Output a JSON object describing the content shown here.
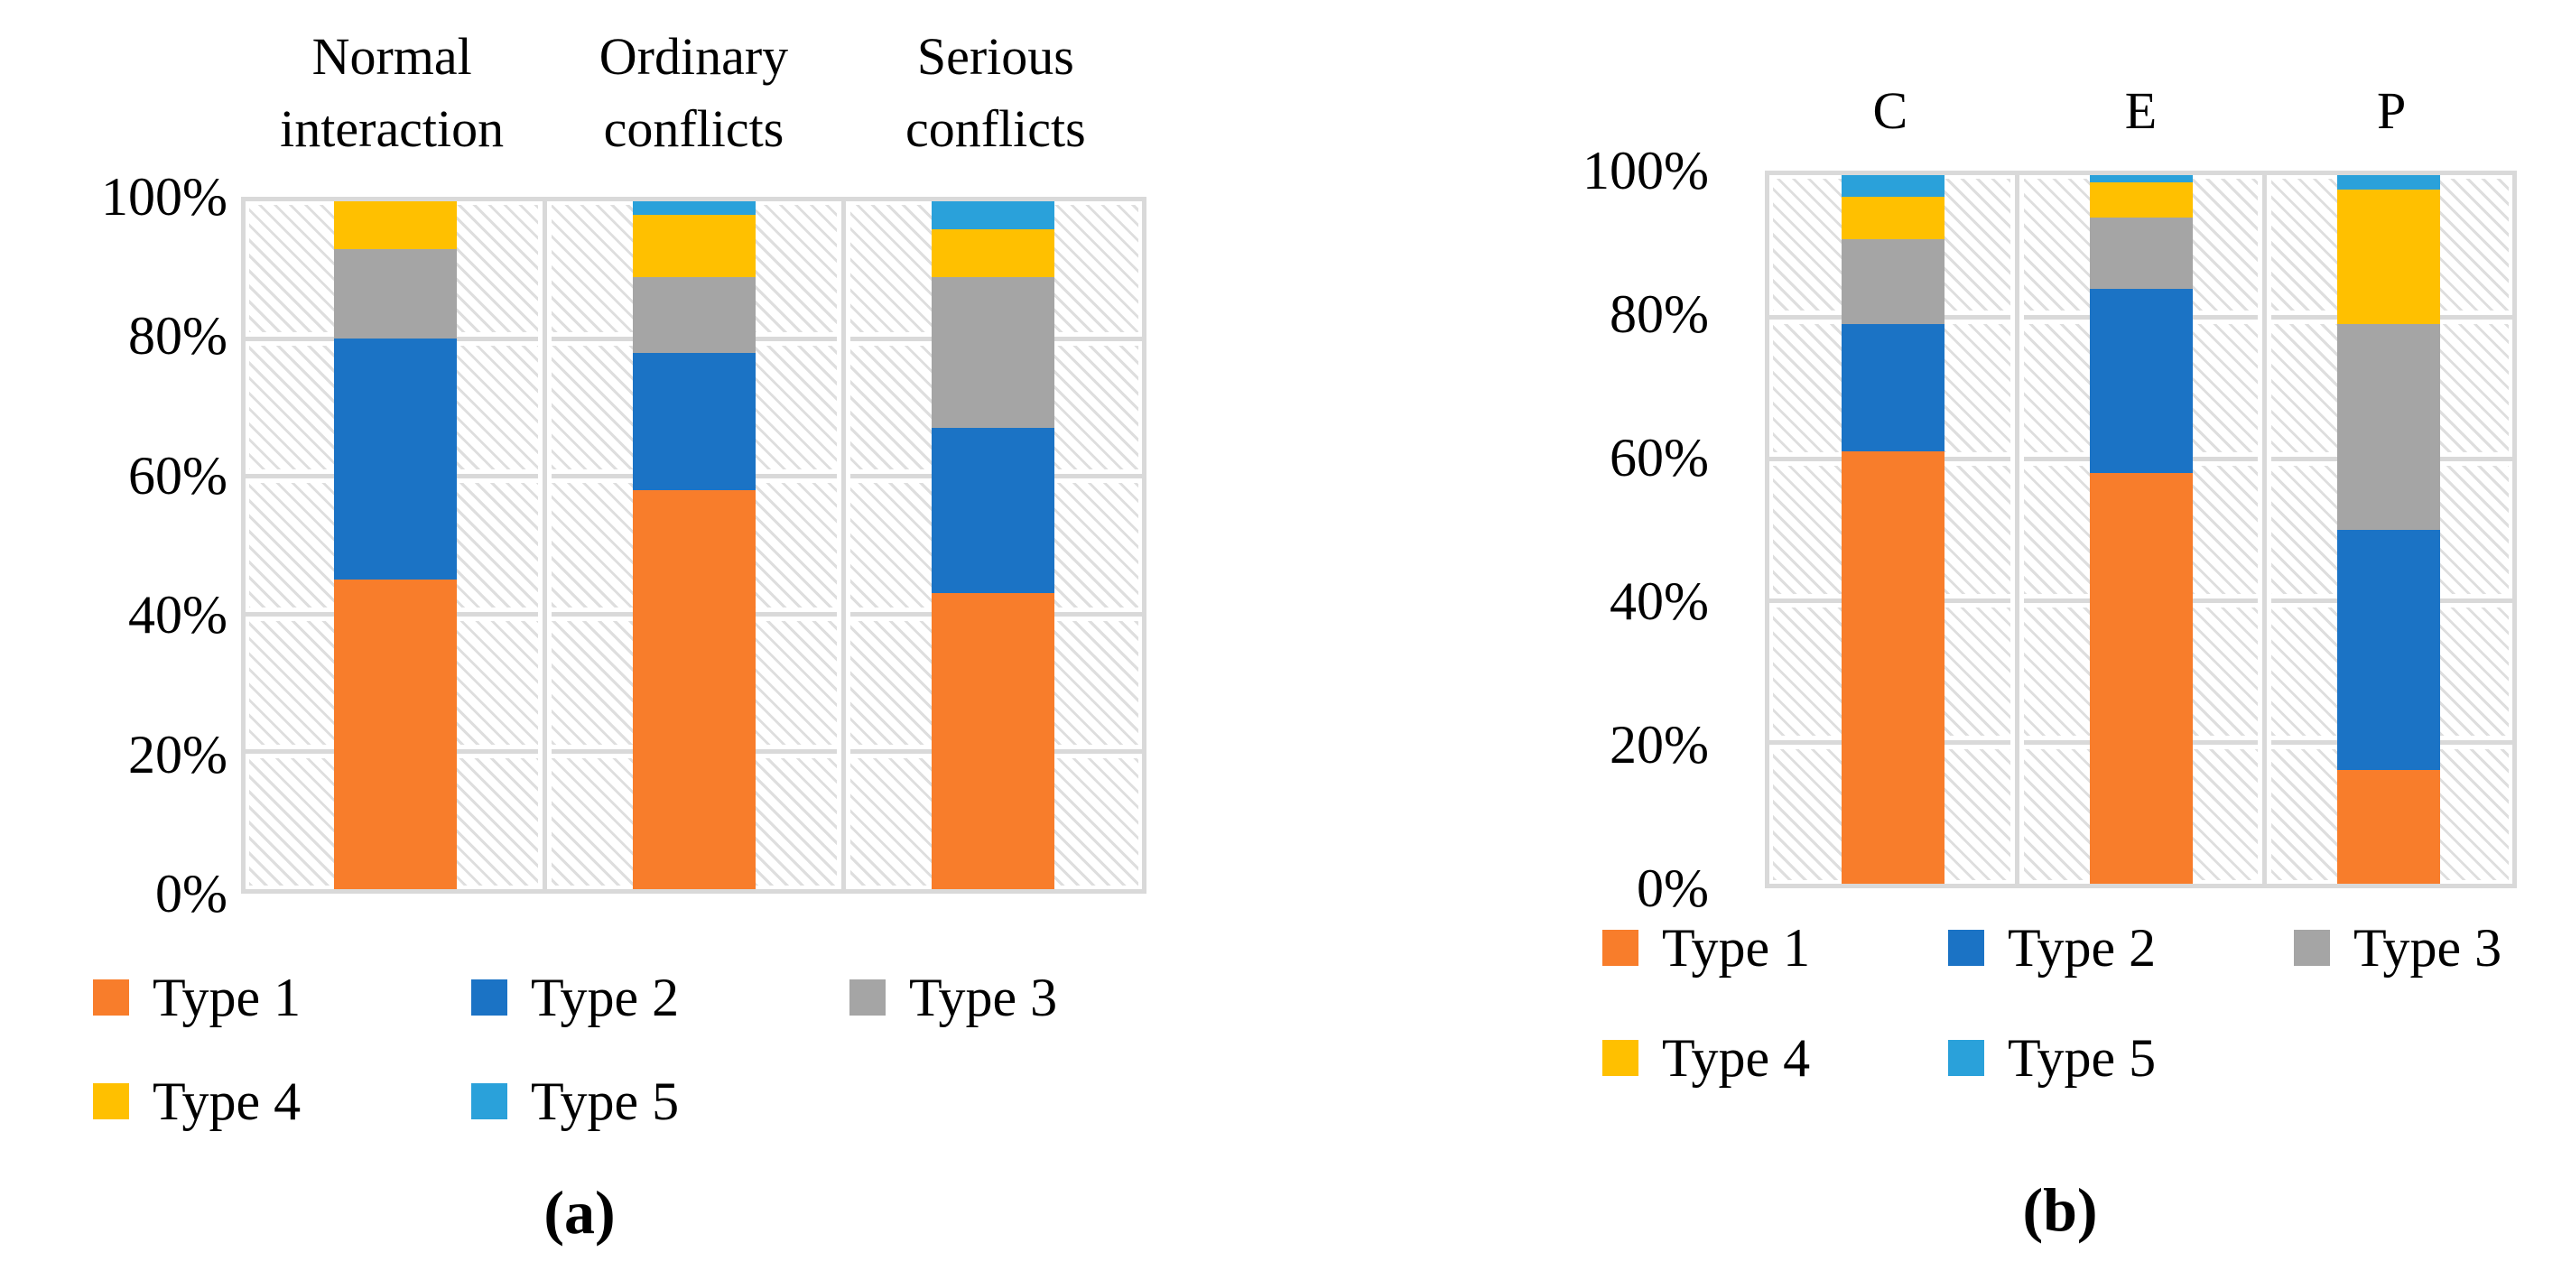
{
  "figure": {
    "background": "#ffffff",
    "grid_color": "#d9d9d9",
    "hatch_color": "#dedede",
    "text_color": "#000000"
  },
  "chart_data": [
    {
      "id": "a",
      "type": "bar",
      "stacked": true,
      "units": "percent",
      "caption": "(a)",
      "categories": [
        "Normal interaction",
        "Ordinary conflicts",
        "Serious conflicts"
      ],
      "y_ticks": [
        "100%",
        "80%",
        "60%",
        "40%",
        "20%",
        "0%"
      ],
      "ylim": [
        0,
        100
      ],
      "grid": "on",
      "legend_position": "bottom",
      "series": [
        {
          "name": "Type 1",
          "color": "#F87D2B",
          "values": [
            45,
            58,
            43
          ]
        },
        {
          "name": "Type 2",
          "color": "#1B73C5",
          "values": [
            35,
            20,
            24
          ]
        },
        {
          "name": "Type 3",
          "color": "#A5A5A5",
          "values": [
            13,
            11,
            22
          ]
        },
        {
          "name": "Type 4",
          "color": "#FFC000",
          "values": [
            7,
            9,
            7
          ]
        },
        {
          "name": "Type 5",
          "color": "#2AA1DA",
          "values": [
            0,
            2,
            4
          ]
        }
      ]
    },
    {
      "id": "b",
      "type": "bar",
      "stacked": true,
      "units": "percent",
      "caption": "(b)",
      "categories": [
        "C",
        "E",
        "P"
      ],
      "y_ticks": [
        "100%",
        "80%",
        "60%",
        "40%",
        "20%",
        "0%"
      ],
      "ylim": [
        0,
        100
      ],
      "grid": "on",
      "legend_position": "bottom",
      "series": [
        {
          "name": "Type 1",
          "color": "#F87D2B",
          "values": [
            61,
            58,
            16
          ]
        },
        {
          "name": "Type 2",
          "color": "#1B73C5",
          "values": [
            18,
            26,
            34
          ]
        },
        {
          "name": "Type 3",
          "color": "#A5A5A5",
          "values": [
            12,
            10,
            29
          ]
        },
        {
          "name": "Type 4",
          "color": "#FFC000",
          "values": [
            6,
            5,
            19
          ]
        },
        {
          "name": "Type 5",
          "color": "#2AA1DA",
          "values": [
            3,
            1,
            2
          ]
        }
      ]
    }
  ]
}
